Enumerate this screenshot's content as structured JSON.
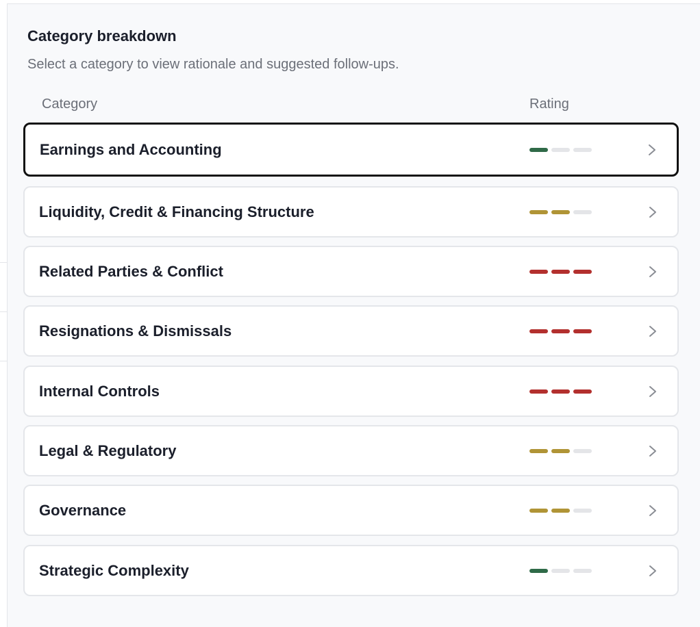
{
  "header": {
    "title": "Category breakdown",
    "subtitle": "Select a category to view rationale and suggested follow-ups."
  },
  "columns": [
    "Category",
    "Rating"
  ],
  "rating_colors": [
    "#2f6a48",
    "#b09436",
    "#b3302e"
  ],
  "selected": 0,
  "rows": [
    {
      "name": "Earnings and Accounting",
      "rating": 1
    },
    {
      "name": "Liquidity, Credit & Financing Structure",
      "rating": 2
    },
    {
      "name": "Related Parties & Conflict",
      "rating": 3
    },
    {
      "name": "Resignations & Dismissals",
      "rating": 3
    },
    {
      "name": "Internal Controls",
      "rating": 3
    },
    {
      "name": "Legal & Regulatory",
      "rating": 2
    },
    {
      "name": "Governance",
      "rating": 2
    },
    {
      "name": "Strategic Complexity",
      "rating": 1
    }
  ]
}
